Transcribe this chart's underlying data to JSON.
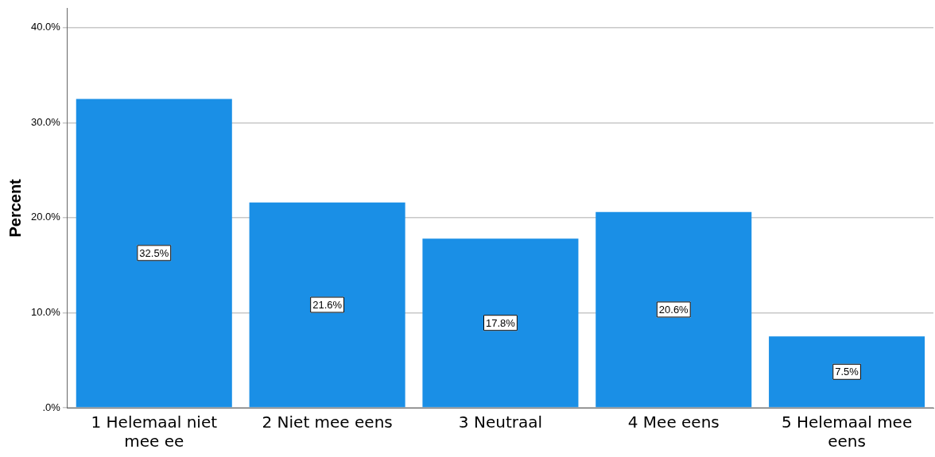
{
  "chart_data": {
    "type": "bar",
    "ylabel": "Percent",
    "categories": [
      "1 Helemaal niet mee ee",
      "2 Niet mee eens",
      "3 Neutraal",
      "4 Mee eens",
      "5 Helemaal mee eens"
    ],
    "values": [
      32.5,
      21.6,
      17.8,
      20.6,
      7.5
    ],
    "value_labels": [
      "32.5%",
      "21.6%",
      "17.8%",
      "20.6%",
      "7.5%"
    ],
    "color": "#1a8fe6",
    "ylim": [
      0,
      42
    ],
    "yticks": [
      {
        "value": 0,
        "label": ".0%"
      },
      {
        "value": 10,
        "label": "10.0%"
      },
      {
        "value": 20,
        "label": "20.0%"
      },
      {
        "value": 30,
        "label": "30.0%"
      },
      {
        "value": 40,
        "label": "40.0%"
      }
    ],
    "grid": "y",
    "legend": false
  }
}
